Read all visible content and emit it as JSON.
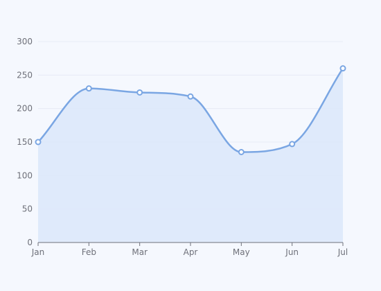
{
  "chart_data": {
    "type": "area",
    "title": "",
    "xlabel": "",
    "ylabel": "",
    "categories": [
      "Jan",
      "Feb",
      "Mar",
      "Apr",
      "May",
      "Jun",
      "Jul"
    ],
    "series": [
      {
        "values": [
          150,
          230,
          224,
          218,
          135,
          147,
          260
        ]
      }
    ],
    "ylim": [
      0,
      300
    ],
    "yticks": [
      "0",
      "50",
      "100",
      "150",
      "200",
      "250",
      "300"
    ],
    "grid": true,
    "smooth": true,
    "colors": {
      "line": "#7aa6e3",
      "area": "#dde8fb",
      "point_fill": "#ffffff",
      "axis": "#6e7079",
      "grid": "#e6ebf5",
      "background": "#f5f8fe"
    }
  }
}
